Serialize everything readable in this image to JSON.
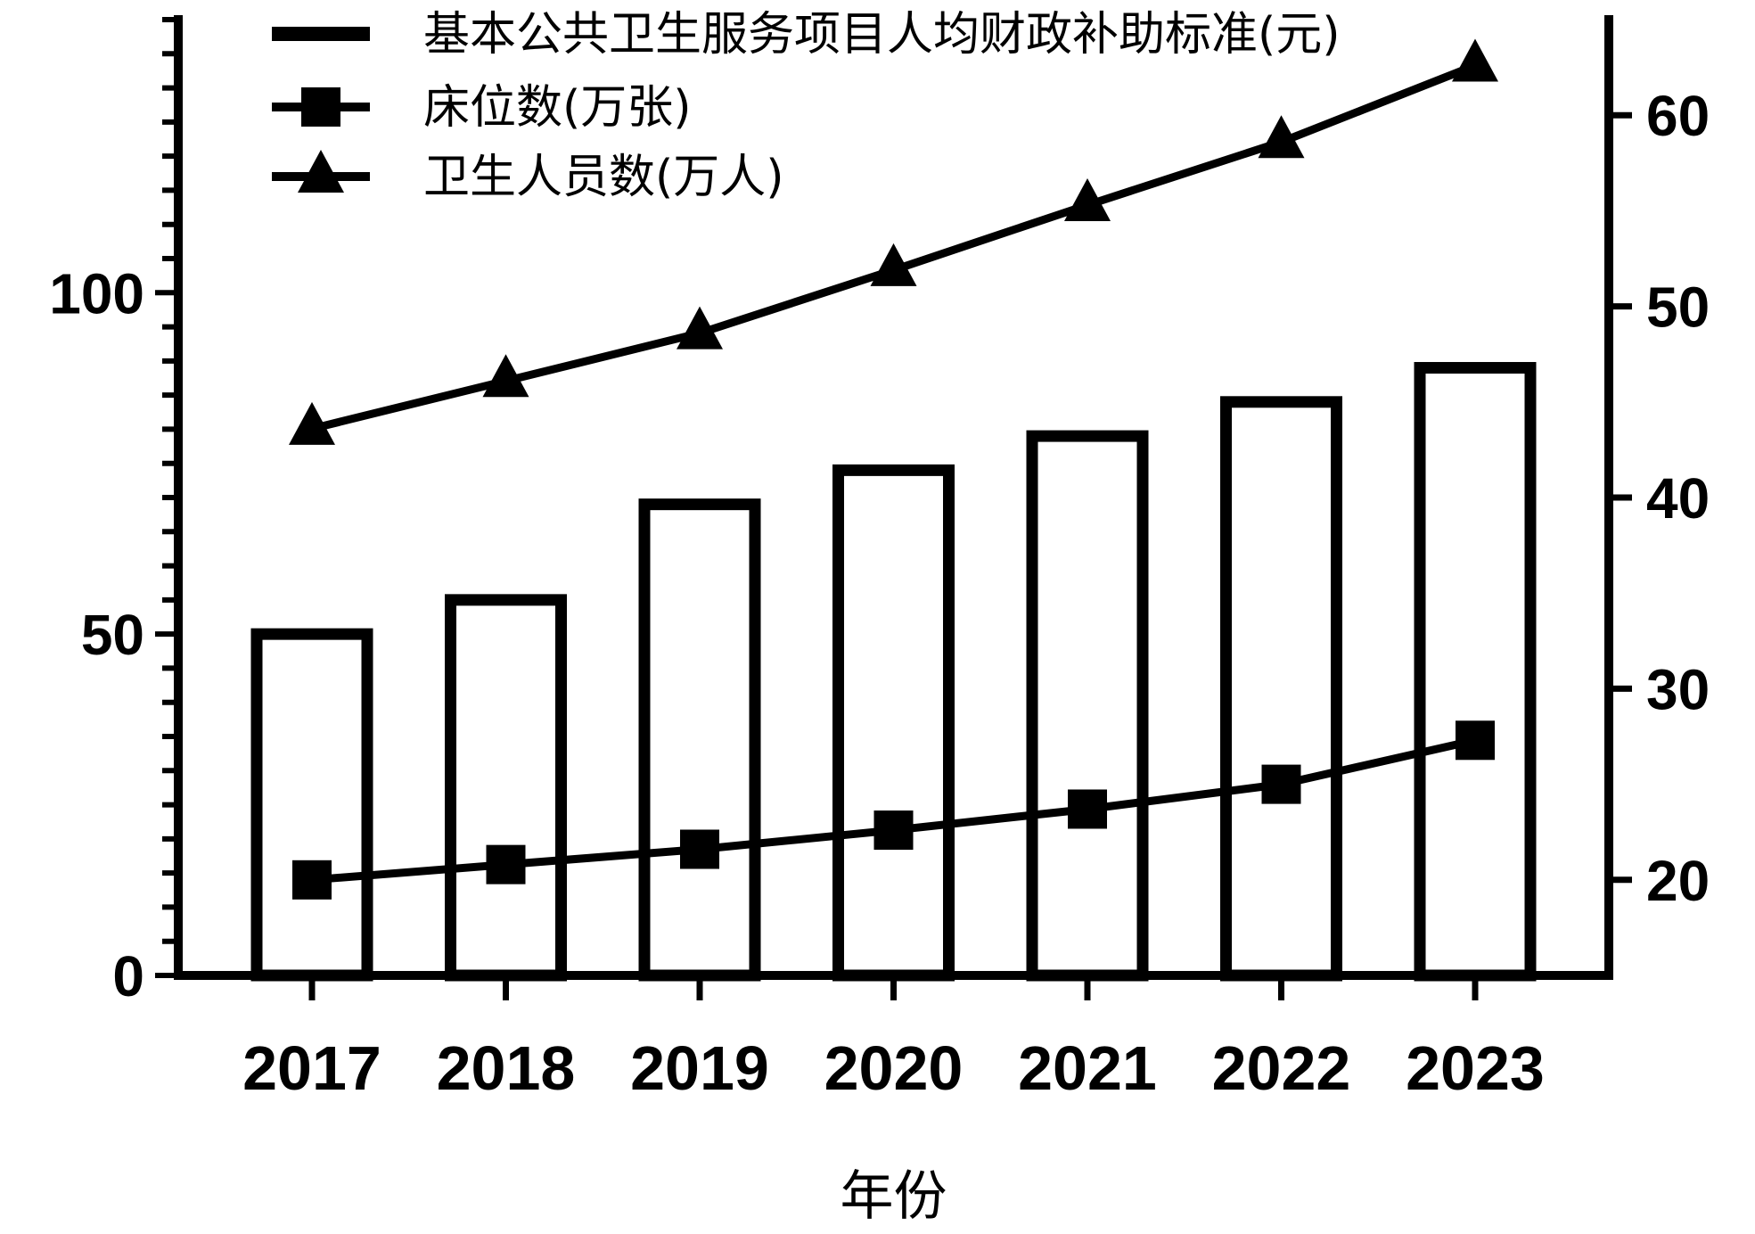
{
  "chart_data": {
    "type": "bar",
    "categories": [
      "2017",
      "2018",
      "2019",
      "2020",
      "2021",
      "2022",
      "2023"
    ],
    "xlabel": "年份",
    "ylabel": "",
    "ylim": [
      0,
      140
    ],
    "y2lim": [
      15,
      65
    ],
    "y_ticks": [
      0,
      50,
      100
    ],
    "y2_ticks": [
      20,
      30,
      40,
      50,
      60
    ],
    "grid": false,
    "legend_position": "top",
    "series": [
      {
        "name": "基本公共卫生服务项目人均财政补助标准(元)",
        "type": "bar",
        "axis": "left",
        "values": [
          50,
          55,
          69,
          74,
          79,
          84,
          89
        ]
      },
      {
        "name": "床位数(万张)",
        "type": "line",
        "marker": "square",
        "axis": "right",
        "values": [
          20.0,
          20.8,
          21.6,
          22.6,
          23.7,
          25.0,
          27.3
        ]
      },
      {
        "name": "卫生人员数(万人)",
        "type": "line",
        "marker": "triangle",
        "axis": "right",
        "values": [
          43.6,
          46.1,
          48.6,
          51.9,
          55.3,
          58.6,
          62.6
        ]
      }
    ]
  },
  "colors": {
    "ink": "#000000",
    "background": "#ffffff"
  }
}
